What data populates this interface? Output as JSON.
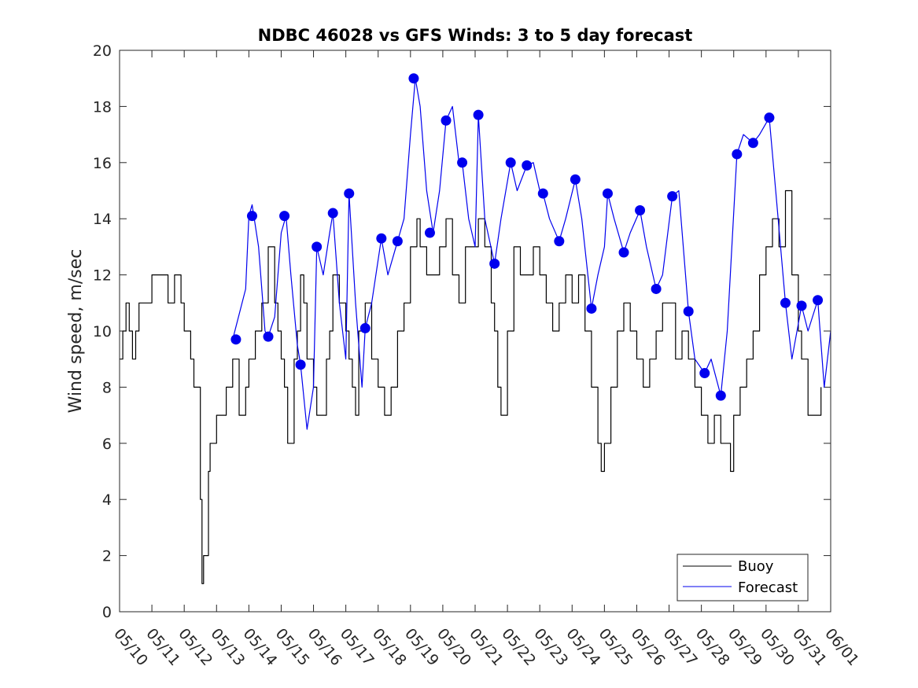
{
  "chart_data": {
    "type": "line",
    "title": "NDBC 46028 vs GFS Winds: 3 to 5 day forecast",
    "ylabel": "Wind speed, m/sec",
    "xlabel": "",
    "ylim": [
      0,
      20
    ],
    "y_ticks": [
      0,
      2,
      4,
      6,
      8,
      10,
      12,
      14,
      16,
      18,
      20
    ],
    "x_range_days": [
      0,
      22
    ],
    "x_ticks": [
      "05/10",
      "05/11",
      "05/12",
      "05/13",
      "05/14",
      "05/15",
      "05/16",
      "05/17",
      "05/18",
      "05/19",
      "05/20",
      "05/21",
      "05/22",
      "05/23",
      "05/24",
      "05/25",
      "05/26",
      "05/27",
      "05/28",
      "05/29",
      "05/30",
      "05/31",
      "06/01"
    ],
    "legend": {
      "position": "bottom-right",
      "entries": [
        "Buoy",
        "Forecast"
      ]
    },
    "colors": {
      "buoy": "#000000",
      "forecast": "#0000ee",
      "marker": "#0000ee"
    },
    "series": [
      {
        "name": "Buoy",
        "color": "#000000",
        "points": [
          [
            0.0,
            9
          ],
          [
            0.1,
            10
          ],
          [
            0.2,
            11
          ],
          [
            0.3,
            10
          ],
          [
            0.4,
            9
          ],
          [
            0.5,
            10
          ],
          [
            0.6,
            11
          ],
          [
            0.8,
            11
          ],
          [
            1.0,
            12
          ],
          [
            1.2,
            12
          ],
          [
            1.5,
            11
          ],
          [
            1.7,
            12
          ],
          [
            1.9,
            11
          ],
          [
            2.0,
            10
          ],
          [
            2.2,
            9
          ],
          [
            2.3,
            8
          ],
          [
            2.4,
            8
          ],
          [
            2.5,
            4
          ],
          [
            2.55,
            1
          ],
          [
            2.6,
            2
          ],
          [
            2.7,
            2
          ],
          [
            2.75,
            5
          ],
          [
            2.8,
            6
          ],
          [
            2.9,
            6
          ],
          [
            3.0,
            7
          ],
          [
            3.2,
            7
          ],
          [
            3.3,
            8
          ],
          [
            3.5,
            9
          ],
          [
            3.7,
            7
          ],
          [
            3.9,
            8
          ],
          [
            4.0,
            9
          ],
          [
            4.2,
            10
          ],
          [
            4.4,
            11
          ],
          [
            4.6,
            13
          ],
          [
            4.8,
            11
          ],
          [
            4.9,
            10
          ],
          [
            5.0,
            9
          ],
          [
            5.1,
            8
          ],
          [
            5.2,
            6
          ],
          [
            5.4,
            9
          ],
          [
            5.5,
            10
          ],
          [
            5.6,
            12
          ],
          [
            5.7,
            11
          ],
          [
            5.8,
            9
          ],
          [
            6.0,
            8
          ],
          [
            6.1,
            7
          ],
          [
            6.2,
            7
          ],
          [
            6.4,
            9
          ],
          [
            6.5,
            10
          ],
          [
            6.6,
            12
          ],
          [
            6.8,
            11
          ],
          [
            7.0,
            10
          ],
          [
            7.1,
            9
          ],
          [
            7.2,
            8
          ],
          [
            7.3,
            7
          ],
          [
            7.4,
            10
          ],
          [
            7.6,
            11
          ],
          [
            7.8,
            9
          ],
          [
            8.0,
            8
          ],
          [
            8.2,
            7
          ],
          [
            8.4,
            8
          ],
          [
            8.6,
            10
          ],
          [
            8.8,
            11
          ],
          [
            9.0,
            13
          ],
          [
            9.2,
            14
          ],
          [
            9.3,
            13
          ],
          [
            9.5,
            12
          ],
          [
            9.7,
            12
          ],
          [
            9.9,
            13
          ],
          [
            10.1,
            14
          ],
          [
            10.3,
            12
          ],
          [
            10.5,
            11
          ],
          [
            10.7,
            13
          ],
          [
            10.9,
            13
          ],
          [
            11.1,
            14
          ],
          [
            11.3,
            13
          ],
          [
            11.5,
            11
          ],
          [
            11.6,
            10
          ],
          [
            11.7,
            8
          ],
          [
            11.8,
            7
          ],
          [
            12.0,
            10
          ],
          [
            12.2,
            13
          ],
          [
            12.4,
            12
          ],
          [
            12.6,
            12
          ],
          [
            12.8,
            13
          ],
          [
            13.0,
            12
          ],
          [
            13.2,
            11
          ],
          [
            13.4,
            10
          ],
          [
            13.6,
            11
          ],
          [
            13.8,
            12
          ],
          [
            14.0,
            11
          ],
          [
            14.2,
            12
          ],
          [
            14.4,
            10
          ],
          [
            14.6,
            8
          ],
          [
            14.8,
            6
          ],
          [
            14.9,
            5
          ],
          [
            15.0,
            6
          ],
          [
            15.2,
            8
          ],
          [
            15.4,
            10
          ],
          [
            15.6,
            11
          ],
          [
            15.8,
            10
          ],
          [
            16.0,
            9
          ],
          [
            16.2,
            8
          ],
          [
            16.4,
            9
          ],
          [
            16.6,
            10
          ],
          [
            16.8,
            11
          ],
          [
            17.0,
            11
          ],
          [
            17.2,
            9
          ],
          [
            17.4,
            10
          ],
          [
            17.6,
            9
          ],
          [
            17.8,
            8
          ],
          [
            18.0,
            7
          ],
          [
            18.2,
            6
          ],
          [
            18.4,
            7
          ],
          [
            18.6,
            6
          ],
          [
            18.8,
            6
          ],
          [
            18.9,
            5
          ],
          [
            19.0,
            7
          ],
          [
            19.2,
            8
          ],
          [
            19.4,
            9
          ],
          [
            19.6,
            10
          ],
          [
            19.8,
            12
          ],
          [
            20.0,
            13
          ],
          [
            20.2,
            14
          ],
          [
            20.4,
            13
          ],
          [
            20.6,
            15
          ],
          [
            20.8,
            12
          ],
          [
            21.0,
            10
          ],
          [
            21.1,
            9
          ],
          [
            21.3,
            7
          ],
          [
            21.5,
            7
          ],
          [
            21.7,
            8
          ]
        ]
      },
      {
        "name": "Forecast",
        "color": "#0000ee",
        "points": [
          [
            3.5,
            9.7
          ],
          [
            3.9,
            11.5
          ],
          [
            4.0,
            14.1
          ],
          [
            4.1,
            14.5
          ],
          [
            4.3,
            13
          ],
          [
            4.5,
            10
          ],
          [
            4.6,
            9.8
          ],
          [
            4.8,
            10.5
          ],
          [
            5.0,
            13.5
          ],
          [
            5.15,
            14.1
          ],
          [
            5.3,
            12
          ],
          [
            5.5,
            9.5
          ],
          [
            5.6,
            8.8
          ],
          [
            5.8,
            6.5
          ],
          [
            6.0,
            8
          ],
          [
            6.1,
            13.0
          ],
          [
            6.3,
            12
          ],
          [
            6.5,
            13.5
          ],
          [
            6.6,
            14.2
          ],
          [
            6.8,
            11
          ],
          [
            7.0,
            9
          ],
          [
            7.1,
            14.9
          ],
          [
            7.3,
            11
          ],
          [
            7.5,
            8
          ],
          [
            7.6,
            10.1
          ],
          [
            7.8,
            11
          ],
          [
            8.1,
            13.3
          ],
          [
            8.3,
            12
          ],
          [
            8.6,
            13.2
          ],
          [
            8.8,
            14
          ],
          [
            9.0,
            17
          ],
          [
            9.15,
            19.0
          ],
          [
            9.3,
            18
          ],
          [
            9.5,
            15
          ],
          [
            9.7,
            13.5
          ],
          [
            9.9,
            15
          ],
          [
            10.1,
            17.5
          ],
          [
            10.3,
            18
          ],
          [
            10.5,
            16
          ],
          [
            10.6,
            16
          ],
          [
            10.8,
            14
          ],
          [
            11.0,
            13
          ],
          [
            11.1,
            17.7
          ],
          [
            11.3,
            14
          ],
          [
            11.6,
            12.4
          ],
          [
            11.8,
            14
          ],
          [
            12.1,
            16.0
          ],
          [
            12.3,
            15
          ],
          [
            12.6,
            15.9
          ],
          [
            12.8,
            16
          ],
          [
            13.0,
            15
          ],
          [
            13.1,
            14.9
          ],
          [
            13.3,
            14
          ],
          [
            13.6,
            13.2
          ],
          [
            13.8,
            14
          ],
          [
            14.1,
            15.4
          ],
          [
            14.3,
            14
          ],
          [
            14.6,
            10.8
          ],
          [
            14.8,
            12
          ],
          [
            15.0,
            13
          ],
          [
            15.1,
            14.9
          ],
          [
            15.3,
            14
          ],
          [
            15.6,
            12.8
          ],
          [
            15.8,
            13.5
          ],
          [
            16.1,
            14.3
          ],
          [
            16.3,
            13
          ],
          [
            16.6,
            11.5
          ],
          [
            16.8,
            12
          ],
          [
            17.1,
            14.8
          ],
          [
            17.3,
            15
          ],
          [
            17.6,
            10.7
          ],
          [
            17.8,
            9
          ],
          [
            18.1,
            8.5
          ],
          [
            18.3,
            9
          ],
          [
            18.6,
            7.7
          ],
          [
            18.8,
            10
          ],
          [
            19.1,
            16.3
          ],
          [
            19.3,
            17
          ],
          [
            19.6,
            16.7
          ],
          [
            19.8,
            17
          ],
          [
            20.1,
            17.6
          ],
          [
            20.3,
            15
          ],
          [
            20.6,
            11.0
          ],
          [
            20.8,
            9
          ],
          [
            21.1,
            10.9
          ],
          [
            21.3,
            10
          ],
          [
            21.6,
            11.1
          ],
          [
            21.8,
            8
          ],
          [
            22.0,
            10
          ]
        ]
      }
    ],
    "markers": [
      [
        3.6,
        9.7
      ],
      [
        4.1,
        14.1
      ],
      [
        4.6,
        9.8
      ],
      [
        5.1,
        14.1
      ],
      [
        5.6,
        8.8
      ],
      [
        6.1,
        13.0
      ],
      [
        6.6,
        14.2
      ],
      [
        7.1,
        14.9
      ],
      [
        7.6,
        10.1
      ],
      [
        8.1,
        13.3
      ],
      [
        8.6,
        13.2
      ],
      [
        9.1,
        19.0
      ],
      [
        9.6,
        13.5
      ],
      [
        10.1,
        17.5
      ],
      [
        10.6,
        16.0
      ],
      [
        11.1,
        17.7
      ],
      [
        11.6,
        12.4
      ],
      [
        12.1,
        16.0
      ],
      [
        12.6,
        15.9
      ],
      [
        13.1,
        14.9
      ],
      [
        13.6,
        13.2
      ],
      [
        14.1,
        15.4
      ],
      [
        14.6,
        10.8
      ],
      [
        15.1,
        14.9
      ],
      [
        15.6,
        12.8
      ],
      [
        16.1,
        14.3
      ],
      [
        16.6,
        11.5
      ],
      [
        17.1,
        14.8
      ],
      [
        17.6,
        10.7
      ],
      [
        18.1,
        8.5
      ],
      [
        18.6,
        7.7
      ],
      [
        19.1,
        16.3
      ],
      [
        19.6,
        16.7
      ],
      [
        20.1,
        17.6
      ],
      [
        20.6,
        11.0
      ],
      [
        21.1,
        10.9
      ],
      [
        21.6,
        11.1
      ]
    ]
  }
}
